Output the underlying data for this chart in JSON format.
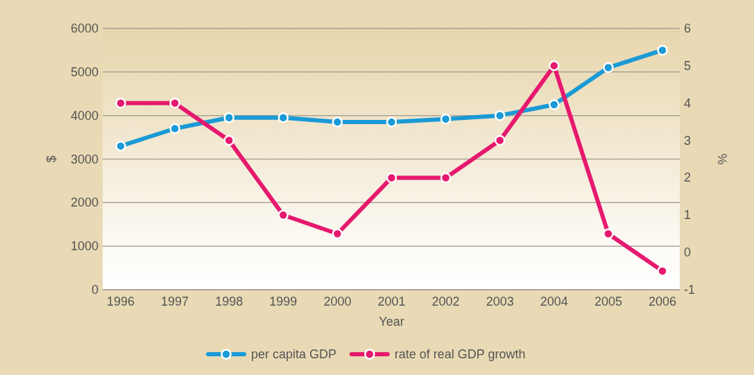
{
  "chart_data": {
    "type": "line",
    "xlabel": "Year",
    "ylabel": "$",
    "y2label": "%",
    "categories": [
      "1996",
      "1997",
      "1998",
      "1999",
      "2000",
      "2001",
      "2002",
      "2003",
      "2004",
      "2005",
      "2006"
    ],
    "series": [
      {
        "name": "per capita GDP",
        "color": "#1a9ad6",
        "values": [
          3300,
          3700,
          3950,
          3950,
          3850,
          3850,
          3920,
          4000,
          4250,
          5100,
          5500
        ]
      },
      {
        "name": "rate of real GDP growth",
        "color": "#e6196e",
        "axis": "y2",
        "values": [
          4,
          4,
          3,
          1,
          0.5,
          2,
          2,
          3,
          5,
          0.5,
          -0.5
        ]
      }
    ],
    "ylim": [
      0,
      6000
    ],
    "yticks": [
      0,
      1000,
      2000,
      3000,
      4000,
      5000,
      6000
    ],
    "y2lim": [
      -1,
      6
    ],
    "y2ticks": [
      -1,
      0,
      1,
      2,
      3,
      4,
      5,
      6
    ],
    "grid": "y",
    "legend": "bottom",
    "marker": "circle",
    "line_style": "solid"
  }
}
